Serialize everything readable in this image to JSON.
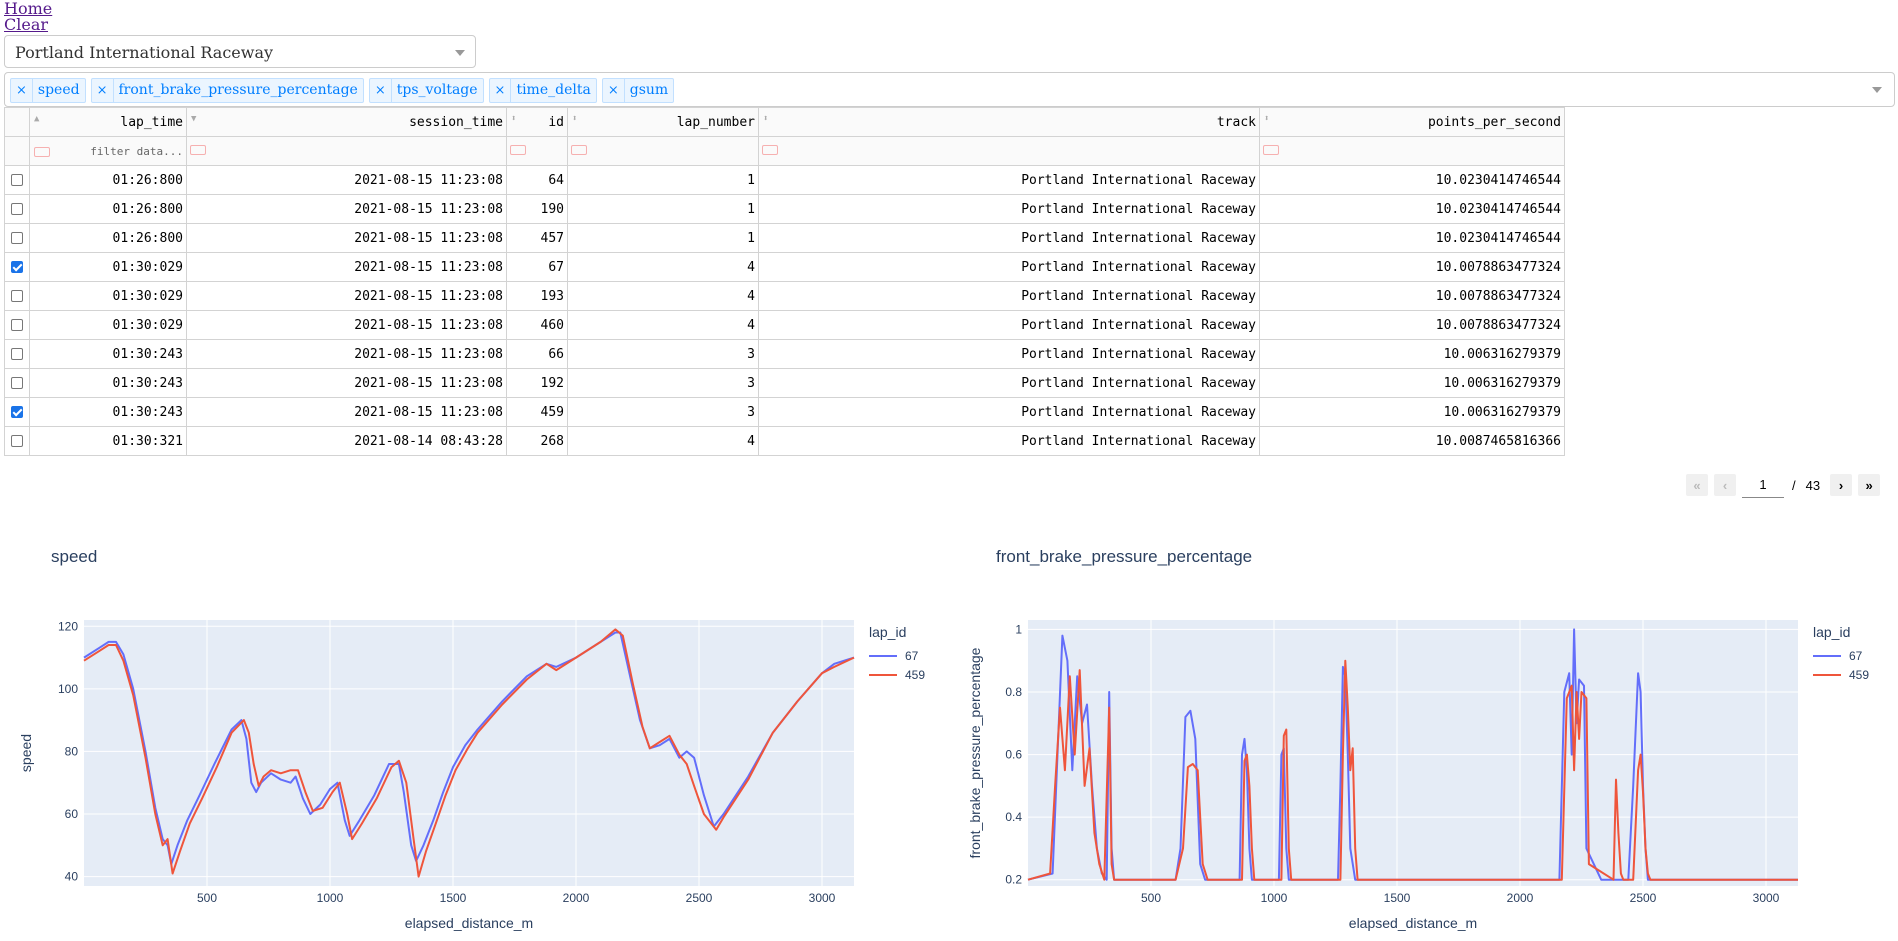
{
  "nav": {
    "home": "Home",
    "clear": "Clear"
  },
  "track_select": {
    "value": "Portland International Raceway"
  },
  "channel_select": {
    "tags": [
      "speed",
      "front_brake_pressure_percentage",
      "tps_voltage",
      "time_delta",
      "gsum"
    ],
    "remove_glyph": "×"
  },
  "table": {
    "columns": [
      "lap_time",
      "session_time",
      "id",
      "lap_number",
      "track",
      "points_per_second"
    ],
    "filter_placeholder": "filter data...",
    "rows": [
      {
        "checked": false,
        "cells": [
          "01:26:800",
          "2021-08-15 11:23:08",
          "64",
          "1",
          "Portland International Raceway",
          "10.0230414746544"
        ]
      },
      {
        "checked": false,
        "cells": [
          "01:26:800",
          "2021-08-15 11:23:08",
          "190",
          "1",
          "Portland International Raceway",
          "10.0230414746544"
        ]
      },
      {
        "checked": false,
        "cells": [
          "01:26:800",
          "2021-08-15 11:23:08",
          "457",
          "1",
          "Portland International Raceway",
          "10.0230414746544"
        ]
      },
      {
        "checked": true,
        "cells": [
          "01:30:029",
          "2021-08-15 11:23:08",
          "67",
          "4",
          "Portland International Raceway",
          "10.0078863477324"
        ]
      },
      {
        "checked": false,
        "cells": [
          "01:30:029",
          "2021-08-15 11:23:08",
          "193",
          "4",
          "Portland International Raceway",
          "10.0078863477324"
        ]
      },
      {
        "checked": false,
        "cells": [
          "01:30:029",
          "2021-08-15 11:23:08",
          "460",
          "4",
          "Portland International Raceway",
          "10.0078863477324"
        ]
      },
      {
        "checked": false,
        "cells": [
          "01:30:243",
          "2021-08-15 11:23:08",
          "66",
          "3",
          "Portland International Raceway",
          "10.006316279379"
        ]
      },
      {
        "checked": false,
        "cells": [
          "01:30:243",
          "2021-08-15 11:23:08",
          "192",
          "3",
          "Portland International Raceway",
          "10.006316279379"
        ]
      },
      {
        "checked": true,
        "cells": [
          "01:30:243",
          "2021-08-15 11:23:08",
          "459",
          "3",
          "Portland International Raceway",
          "10.006316279379"
        ]
      },
      {
        "checked": false,
        "cells": [
          "01:30:321",
          "2021-08-14 08:43:28",
          "268",
          "4",
          "Portland International Raceway",
          "10.0087465816366"
        ]
      }
    ]
  },
  "pagination": {
    "current": "1",
    "separator": "/",
    "total": "43",
    "first": "«",
    "prev": "‹",
    "next": "›",
    "last": "»"
  },
  "chart_data": [
    {
      "type": "line",
      "title": "speed",
      "xlabel": "elapsed_distance_m",
      "ylabel": "speed",
      "xlim": [
        0,
        3130
      ],
      "ylim": [
        37,
        122
      ],
      "xticks": [
        500,
        1000,
        1500,
        2000,
        2500,
        3000
      ],
      "yticks": [
        40,
        60,
        80,
        100,
        120
      ],
      "legend_title": "lap_id",
      "legend_position": "top-right-outside",
      "grid": true,
      "series": [
        {
          "name": "67",
          "color": "#636efa",
          "x": [
            0,
            60,
            100,
            130,
            160,
            200,
            250,
            290,
            320,
            340,
            355,
            380,
            420,
            470,
            530,
            600,
            640,
            660,
            680,
            700,
            720,
            760,
            800,
            840,
            860,
            890,
            920,
            960,
            1000,
            1030,
            1060,
            1080,
            1120,
            1180,
            1240,
            1280,
            1300,
            1330,
            1350,
            1380,
            1420,
            1460,
            1500,
            1550,
            1600,
            1700,
            1800,
            1880,
            1920,
            2000,
            2100,
            2160,
            2180,
            2220,
            2260,
            2300,
            2340,
            2380,
            2420,
            2450,
            2480,
            2520,
            2560,
            2600,
            2700,
            2800,
            2900,
            3000,
            3050,
            3130
          ],
          "y": [
            110,
            113,
            115,
            115,
            111,
            100,
            80,
            62,
            52,
            50,
            44,
            50,
            58,
            66,
            76,
            87,
            90,
            84,
            70,
            67,
            70,
            73,
            71,
            70,
            72,
            65,
            60,
            63,
            68,
            70,
            58,
            53,
            58,
            66,
            76,
            76,
            67,
            50,
            45,
            50,
            58,
            67,
            75,
            82,
            87,
            96,
            104,
            108,
            107,
            110,
            115,
            118,
            118,
            104,
            90,
            81,
            82,
            84,
            78,
            80,
            78,
            66,
            56,
            60,
            72,
            86,
            96,
            105,
            108,
            110
          ]
        },
        {
          "name": "459",
          "color": "#ef553b",
          "x": [
            0,
            60,
            100,
            130,
            160,
            200,
            250,
            290,
            320,
            340,
            360,
            390,
            430,
            480,
            540,
            600,
            650,
            670,
            690,
            710,
            730,
            760,
            800,
            840,
            870,
            900,
            930,
            970,
            1010,
            1040,
            1070,
            1090,
            1130,
            1190,
            1250,
            1280,
            1310,
            1340,
            1360,
            1390,
            1430,
            1470,
            1510,
            1560,
            1600,
            1700,
            1800,
            1880,
            1920,
            2000,
            2100,
            2160,
            2190,
            2230,
            2270,
            2300,
            2340,
            2380,
            2420,
            2450,
            2480,
            2520,
            2570,
            2600,
            2700,
            2800,
            2900,
            3000,
            3050,
            3130
          ],
          "y": [
            109,
            112,
            114,
            114,
            109,
            98,
            78,
            60,
            50,
            52,
            41,
            48,
            57,
            65,
            75,
            86,
            90,
            86,
            76,
            69,
            72,
            74,
            73,
            74,
            74,
            67,
            61,
            62,
            67,
            70,
            60,
            52,
            57,
            65,
            75,
            77,
            70,
            52,
            40,
            48,
            57,
            66,
            74,
            81,
            86,
            95,
            103,
            108,
            106,
            110,
            115,
            119,
            117,
            102,
            88,
            81,
            83,
            85,
            79,
            76,
            69,
            60,
            55,
            59,
            71,
            86,
            96,
            105,
            107,
            110
          ]
        }
      ]
    },
    {
      "type": "line",
      "title": "front_brake_pressure_percentage",
      "xlabel": "elapsed_distance_m",
      "ylabel": "front_brake_pressure_percentage",
      "xlim": [
        0,
        3130
      ],
      "ylim": [
        0.18,
        1.03
      ],
      "xticks": [
        500,
        1000,
        1500,
        2000,
        2500,
        3000
      ],
      "yticks": [
        0.2,
        0.4,
        0.6,
        0.8,
        1
      ],
      "legend_title": "lap_id",
      "legend_position": "top-right-outside",
      "grid": true,
      "series": [
        {
          "name": "67",
          "color": "#636efa",
          "x": [
            0,
            100,
            120,
            140,
            160,
            180,
            200,
            220,
            240,
            260,
            280,
            300,
            320,
            330,
            340,
            350,
            360,
            600,
            620,
            640,
            660,
            680,
            700,
            720,
            860,
            870,
            880,
            890,
            900,
            910,
            1020,
            1030,
            1040,
            1050,
            1060,
            1260,
            1270,
            1280,
            1290,
            1300,
            1310,
            1330,
            1340,
            1350,
            2160,
            2180,
            2200,
            2210,
            2220,
            2230,
            2240,
            2260,
            2270,
            2330,
            2440,
            2460,
            2480,
            2490,
            2500,
            2510,
            2520,
            2540,
            3130
          ],
          "y": [
            0.2,
            0.22,
            0.6,
            0.98,
            0.9,
            0.55,
            0.85,
            0.7,
            0.76,
            0.5,
            0.3,
            0.22,
            0.2,
            0.8,
            0.3,
            0.2,
            0.2,
            0.2,
            0.3,
            0.72,
            0.74,
            0.65,
            0.25,
            0.2,
            0.2,
            0.6,
            0.65,
            0.55,
            0.3,
            0.2,
            0.2,
            0.6,
            0.62,
            0.3,
            0.2,
            0.2,
            0.5,
            0.88,
            0.85,
            0.6,
            0.3,
            0.2,
            0.2,
            0.2,
            0.2,
            0.8,
            0.86,
            0.6,
            1.0,
            0.7,
            0.84,
            0.82,
            0.3,
            0.2,
            0.2,
            0.5,
            0.86,
            0.8,
            0.5,
            0.3,
            0.2,
            0.2,
            0.2
          ]
        },
        {
          "name": "459",
          "color": "#ef553b",
          "x": [
            0,
            90,
            110,
            130,
            150,
            170,
            190,
            210,
            230,
            250,
            270,
            290,
            310,
            330,
            340,
            350,
            360,
            600,
            630,
            650,
            670,
            690,
            710,
            730,
            870,
            880,
            890,
            900,
            910,
            920,
            1030,
            1040,
            1050,
            1060,
            1070,
            1270,
            1280,
            1290,
            1300,
            1310,
            1320,
            1330,
            1340,
            1350,
            2170,
            2190,
            2210,
            2220,
            2230,
            2240,
            2250,
            2270,
            2280,
            2380,
            2390,
            2400,
            2410,
            2420,
            2460,
            2480,
            2490,
            2500,
            2510,
            2520,
            2530,
            2540,
            3130
          ],
          "y": [
            0.2,
            0.22,
            0.5,
            0.75,
            0.55,
            0.85,
            0.6,
            0.87,
            0.5,
            0.62,
            0.35,
            0.25,
            0.2,
            0.75,
            0.25,
            0.2,
            0.2,
            0.2,
            0.3,
            0.56,
            0.57,
            0.55,
            0.25,
            0.2,
            0.2,
            0.58,
            0.6,
            0.5,
            0.3,
            0.2,
            0.2,
            0.66,
            0.68,
            0.3,
            0.2,
            0.2,
            0.6,
            0.9,
            0.75,
            0.55,
            0.62,
            0.3,
            0.2,
            0.2,
            0.2,
            0.78,
            0.82,
            0.55,
            0.8,
            0.65,
            0.8,
            0.78,
            0.25,
            0.2,
            0.52,
            0.35,
            0.22,
            0.2,
            0.2,
            0.55,
            0.6,
            0.48,
            0.3,
            0.22,
            0.2,
            0.2,
            0.2
          ]
        }
      ]
    }
  ]
}
